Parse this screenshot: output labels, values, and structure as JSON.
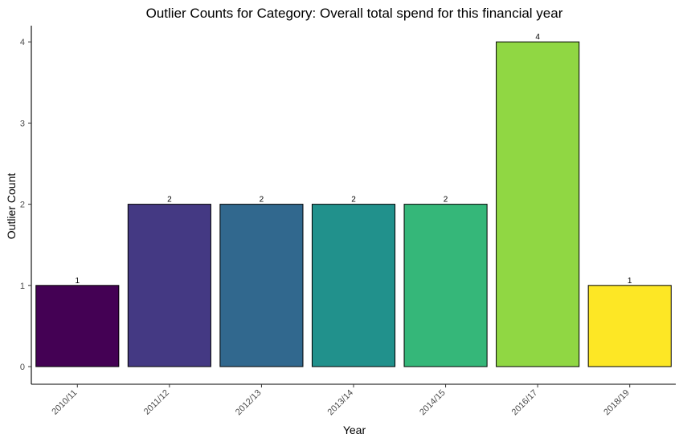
{
  "chart_data": {
    "type": "bar",
    "title": "Outlier Counts for Category: Overall total spend for this financial year",
    "xlabel": "Year",
    "ylabel": "Outlier Count",
    "categories": [
      "2010/11",
      "2011/12",
      "2012/13",
      "2013/14",
      "2014/15",
      "2016/17",
      "2018/19"
    ],
    "values": [
      1,
      2,
      2,
      2,
      2,
      4,
      1
    ],
    "data_labels": [
      "1",
      "2",
      "2",
      "2",
      "2",
      "4",
      "1"
    ],
    "colors": [
      "#440154",
      "#443983",
      "#31688e",
      "#21918c",
      "#35b779",
      "#90d743",
      "#fde725"
    ],
    "ylim": [
      0,
      4.2
    ],
    "yticks": [
      0,
      1,
      2,
      3,
      4
    ],
    "ytick_labels": [
      "0",
      "1",
      "2",
      "3",
      "4"
    ],
    "grid": false,
    "legend": "none"
  }
}
